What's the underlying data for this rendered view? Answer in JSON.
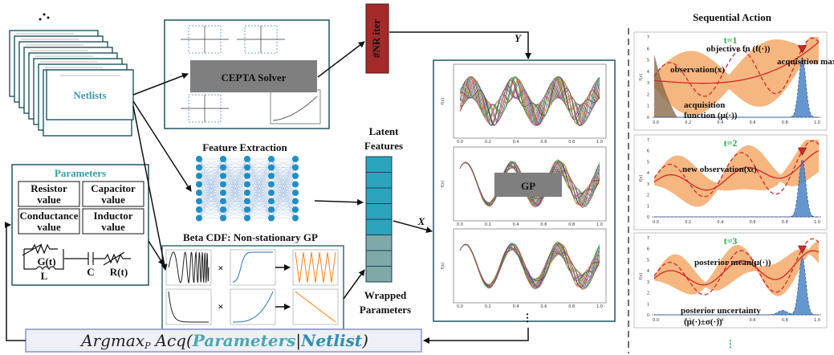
{
  "netlists": {
    "label": "Netlists"
  },
  "solver": {
    "label": "CEPTA Solver"
  },
  "nr_iter": "#NR iter",
  "y_label": "Y",
  "x_label": "X",
  "feature_extraction": "Feature Extraction",
  "latent_features": [
    "Latent",
    "Features"
  ],
  "wrapped_parameters": [
    "Wrapped",
    "Parameters"
  ],
  "gp": "GP",
  "parameters": {
    "title": "Parameters",
    "fields": [
      [
        "Resistor",
        "value"
      ],
      [
        "Capacitor",
        "value"
      ],
      [
        "Conductance",
        "value"
      ],
      [
        "Inductor",
        "value"
      ]
    ],
    "circuit": [
      "G(t)",
      "L",
      "C",
      "R(t)"
    ]
  },
  "beta_cdf": "Beta CDF: Non-stationary GP",
  "times": "×",
  "ellipsis": "⋮",
  "objective": {
    "argmax": "Argmax",
    "sub": "P",
    "acq": "Acq(",
    "params": "Parameters",
    "bar": "|",
    "netlist": "Netlist",
    "close": ")"
  },
  "plot_axes": {
    "xticks": [
      "0.0",
      "0.2",
      "0.4",
      "0.6",
      "0.8",
      "1.0"
    ],
    "yticks": [
      "0",
      "1",
      "2",
      "3",
      "4",
      "5",
      "6",
      "7"
    ],
    "ylabel": "f(x)"
  },
  "sequential": {
    "title": "Sequential Action",
    "steps": [
      {
        "label": "t=1",
        "notes": [
          "objective fn (f(·))",
          "observation(x)",
          "acquisition max",
          [
            "acquisition",
            "function (μ(·))"
          ]
        ]
      },
      {
        "label": "t=2",
        "notes": [
          "new observation(xₜ)"
        ]
      },
      {
        "label": "t=3",
        "notes": [
          "posterior mean(μ(·))",
          [
            "posterior uncertainty",
            "(μ(·)±σ(·))"
          ]
        ]
      }
    ]
  }
}
